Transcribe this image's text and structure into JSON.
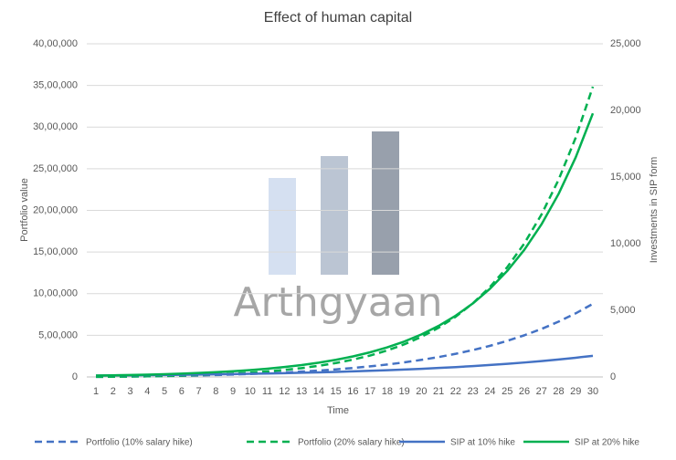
{
  "chart_data": {
    "type": "line",
    "title": "Effect of human capital",
    "x_label": "Time",
    "y_label": "Portfolio value",
    "y2_label": "Investments in SIP form",
    "watermark": "Arthgyaan",
    "categories": [
      "1",
      "2",
      "3",
      "4",
      "5",
      "6",
      "7",
      "8",
      "9",
      "10",
      "11",
      "12",
      "13",
      "14",
      "15",
      "16",
      "17",
      "18",
      "19",
      "20",
      "21",
      "22",
      "23",
      "24",
      "25",
      "26",
      "27",
      "28",
      "29",
      "30"
    ],
    "ylim": [
      0,
      4000000
    ],
    "yticks": [
      0,
      {
        "value": 500000,
        "label": "5,00,000"
      },
      {
        "value": 1000000,
        "label": "10,00,000"
      },
      {
        "value": 1500000,
        "label": "15,00,000"
      },
      {
        "value": 2000000,
        "label": "20,00,000"
      },
      {
        "value": 2500000,
        "label": "25,00,000"
      },
      {
        "value": 3000000,
        "label": "30,00,000"
      },
      {
        "value": 3500000,
        "label": "35,00,000"
      },
      {
        "value": 4000000,
        "label": "40,00,000"
      }
    ],
    "y2lim": [
      0,
      25000
    ],
    "y2ticks": [
      0,
      {
        "value": 5000,
        "label": "5,000"
      },
      {
        "value": 10000,
        "label": "10,000"
      },
      {
        "value": 15000,
        "label": "15,000"
      },
      {
        "value": 20000,
        "label": "20,000"
      },
      {
        "value": 25000,
        "label": "25,000"
      }
    ],
    "grid": true,
    "legend": "bottom",
    "series": [
      {
        "name": "Portfolio (10% salary hike)",
        "color": "#4472c4",
        "dashed": true,
        "values": [
          1000,
          3000,
          5000,
          8000,
          11000,
          14000,
          18000,
          23000,
          29000,
          36000,
          44000,
          53000,
          64000,
          76000,
          91000,
          108000,
          127000,
          149000,
          175000,
          205000,
          239000,
          278000,
          323000,
          374000,
          433000,
          500000,
          576000,
          664000,
          764000,
          878000
        ]
      },
      {
        "name": "Portfolio (20% salary hike)",
        "color": "#00b050",
        "dashed": true,
        "values": [
          1000,
          3000,
          5000,
          8000,
          12000,
          17000,
          23000,
          31000,
          40000,
          52000,
          66000,
          84000,
          106000,
          134000,
          167000,
          208000,
          257000,
          318000,
          392000,
          482000,
          591000,
          724000,
          885000,
          1081000,
          1317000,
          1603000,
          1950000,
          2368000,
          2874000,
          3485000
        ]
      },
      {
        "name": "SIP at 10% hike",
        "color": "#4472c4",
        "axis": "y2",
        "values": [
          100,
          110,
          121,
          133,
          146,
          161,
          177,
          195,
          214,
          236,
          259,
          285,
          314,
          345,
          380,
          418,
          459,
          505,
          556,
          612,
          673,
          740,
          814,
          895,
          985,
          1083,
          1192,
          1311,
          1442,
          1586
        ]
      },
      {
        "name": "SIP at 20% hike",
        "color": "#00b050",
        "axis": "y2",
        "values": [
          100,
          120,
          144,
          173,
          207,
          249,
          299,
          358,
          430,
          516,
          619,
          743,
          892,
          1070,
          1284,
          1541,
          1849,
          2219,
          2662,
          3195,
          3834,
          4601,
          5521,
          6625,
          7950,
          9540,
          11448,
          13737,
          16484,
          19781
        ]
      }
    ]
  }
}
